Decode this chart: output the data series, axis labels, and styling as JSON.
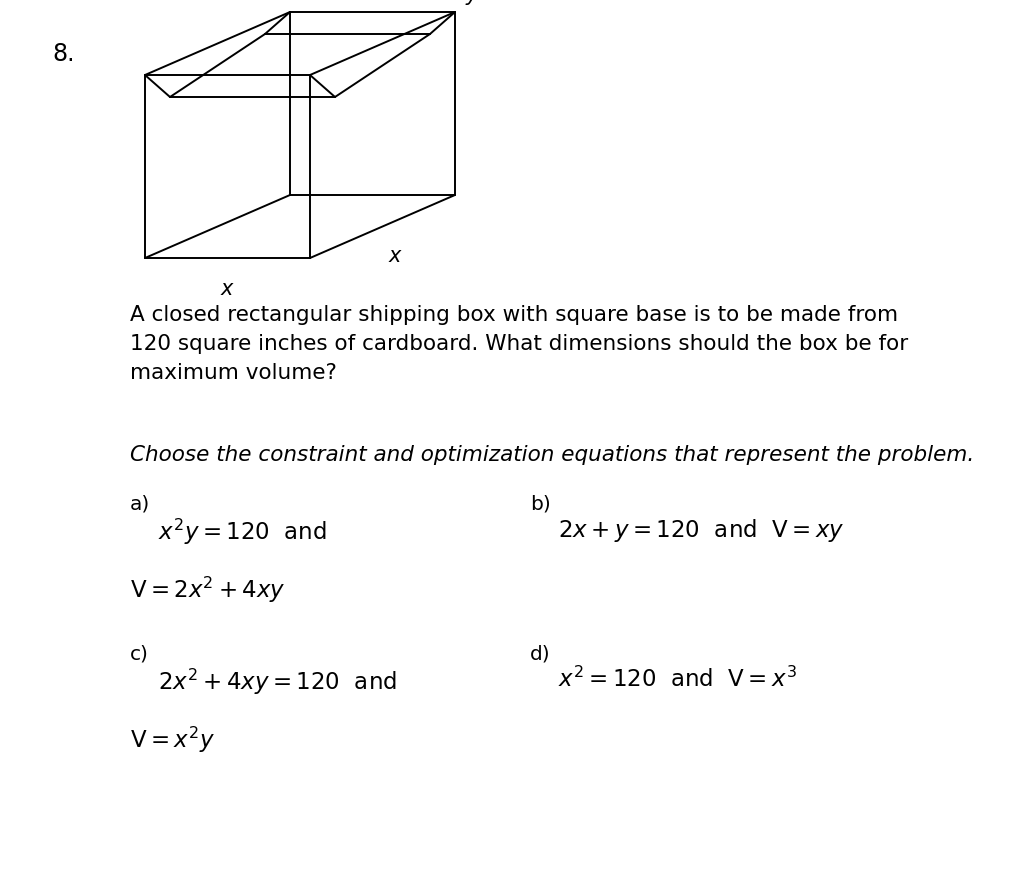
{
  "problem_number": "8.",
  "paragraph_text": "A closed rectangular shipping box with square base is to be made from\n120 square inches of cardboard. What dimensions should the box be for\nmaximum volume?",
  "italic_text": "Choose the constraint and optimization equations that represent the problem.",
  "a_label": "a)",
  "a_line1": "$x^2y = 120$  and",
  "a_line2": "$\\mathrm{V} = 2x^2 + 4xy$",
  "b_label": "b)",
  "b_line1": "$2x + y = 120$  and  $\\mathrm{V} = xy$",
  "c_label": "c)",
  "c_line1": "$2x^2 + 4xy = 120$  and",
  "c_line2": "$\\mathrm{V} = x^2y$",
  "d_label": "d)",
  "d_line1": "$x^2 = 120$  and  $\\mathrm{V} = x^3$",
  "bg_color": "#ffffff",
  "text_color": "#000000",
  "box_color": "#000000"
}
